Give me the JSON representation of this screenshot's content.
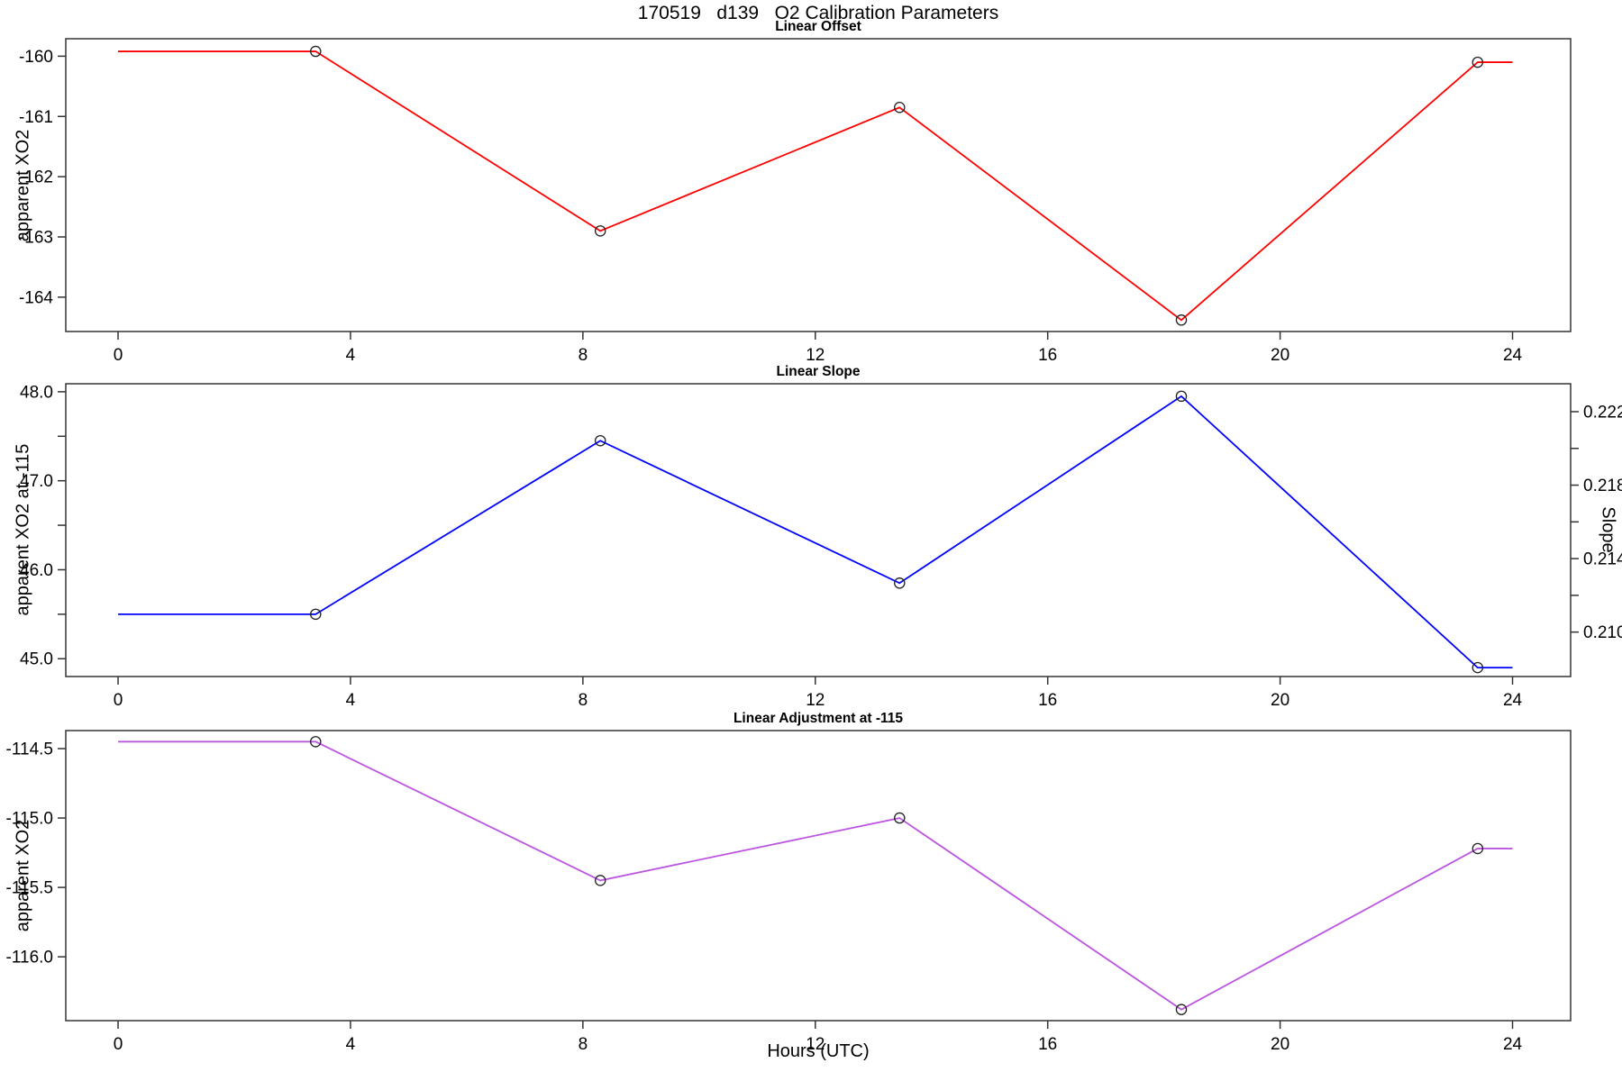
{
  "main_title": "170519   d139   O2 Calibration Parameters",
  "x_axis": {
    "label": "Hours (UTC)",
    "tick_values": [
      0,
      4,
      8,
      12,
      16,
      20,
      24
    ],
    "tick_labels": [
      "0",
      "4",
      "8",
      "12",
      "16",
      "20",
      "24"
    ],
    "xlim": [
      -0.9,
      25.0
    ]
  },
  "chart_data": [
    {
      "type": "line",
      "title": "Linear Offset",
      "ylabel": "apparent XO2",
      "color": "#FF0000",
      "marker": "open-circle",
      "marker_color": "#222222",
      "points": {
        "x": [
          3.4,
          8.3,
          13.45,
          18.3,
          23.4
        ],
        "y": [
          -159.92,
          -162.9,
          -160.85,
          -164.38,
          -160.1
        ]
      },
      "line": {
        "x": [
          0,
          3.4,
          8.3,
          13.45,
          18.3,
          23.4,
          24
        ],
        "y": [
          -159.92,
          -159.92,
          -162.9,
          -160.85,
          -164.38,
          -160.1,
          -160.1
        ]
      },
      "ylim": [
        -164.57,
        -159.71
      ],
      "yticks": {
        "values": [
          -160,
          -161,
          -162,
          -163,
          -164
        ],
        "labels": [
          "-160",
          "-161",
          "-162",
          "-163",
          "-164"
        ]
      }
    },
    {
      "type": "line",
      "title": "Linear Slope",
      "ylabel": "apparent XO2 at -115",
      "ylabel_right": "Slope",
      "color": "#0000FF",
      "marker": "open-circle",
      "marker_color": "#222222",
      "points": {
        "x": [
          3.4,
          8.3,
          13.45,
          18.3,
          23.4
        ],
        "y": [
          45.5,
          47.45,
          45.85,
          47.95,
          44.9
        ]
      },
      "line": {
        "x": [
          0,
          3.4,
          8.3,
          13.45,
          18.3,
          23.4,
          24
        ],
        "y": [
          45.5,
          45.5,
          47.45,
          45.85,
          47.95,
          44.9,
          44.9
        ]
      },
      "ylim": [
        44.8,
        48.09
      ],
      "yticks": {
        "values": [
          45,
          46,
          47,
          48
        ],
        "labels": [
          "45.0",
          "46.0",
          "47.0",
          "48.0"
        ],
        "minor": [
          45.5,
          46.5,
          47.5
        ]
      },
      "ylim_right": [
        0.20758,
        0.22352
      ],
      "yticks_right": {
        "values": [
          0.21,
          0.214,
          0.218,
          0.222
        ],
        "labels": [
          "0.210",
          "0.214",
          "0.218",
          "0.222"
        ],
        "minor": [
          0.212,
          0.216,
          0.22
        ]
      }
    },
    {
      "type": "line",
      "title": "Linear Adjustment at -115",
      "ylabel": "apparent XO2",
      "color": "#BC55E0",
      "marker": "open-circle",
      "marker_color": "#222222",
      "points": {
        "x": [
          3.4,
          8.3,
          13.45,
          18.3,
          23.4
        ],
        "y": [
          -114.45,
          -115.45,
          -115.0,
          -116.38,
          -115.22
        ]
      },
      "line": {
        "x": [
          0,
          3.4,
          8.3,
          13.45,
          18.3,
          23.4,
          24
        ],
        "y": [
          -114.45,
          -114.45,
          -115.45,
          -115.0,
          -116.38,
          -115.22,
          -115.22
        ]
      },
      "ylim": [
        -116.46,
        -114.37
      ],
      "yticks": {
        "values": [
          -114.5,
          -115.0,
          -115.5,
          -116.0
        ],
        "labels": [
          "-114.5",
          "-115.0",
          "-115.5",
          "-116.0"
        ]
      }
    }
  ]
}
